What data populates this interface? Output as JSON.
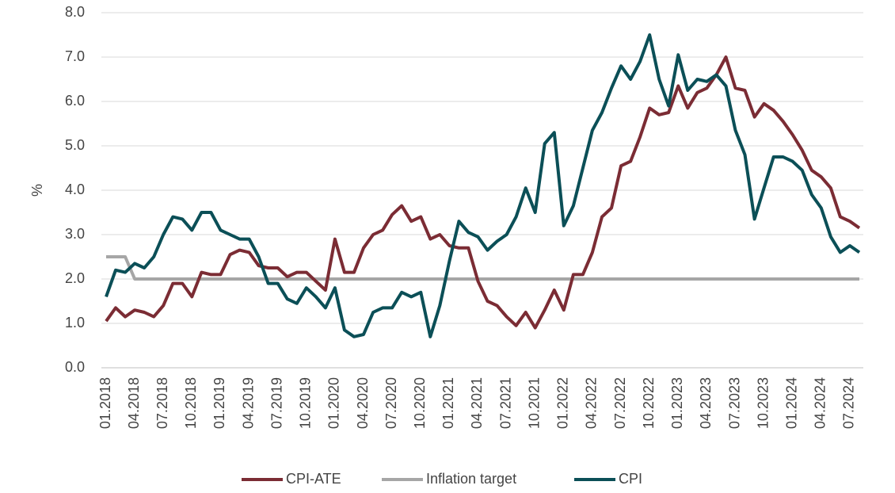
{
  "chart_data": {
    "type": "line",
    "ylabel": "%",
    "categories": [
      "01.2018",
      null,
      null,
      "04.2018",
      null,
      null,
      "07.2018",
      null,
      null,
      "10.2018",
      null,
      null,
      "01.2019",
      null,
      null,
      "04.2019",
      null,
      null,
      "07.2019",
      null,
      null,
      "10.2019",
      null,
      null,
      "01.2020",
      null,
      null,
      "04.2020",
      null,
      null,
      "07.2020",
      null,
      null,
      "10.2020",
      null,
      null,
      "01.2021",
      null,
      null,
      "04.2021",
      null,
      null,
      "07.2021",
      null,
      null,
      "10.2021",
      null,
      null,
      "01.2022",
      null,
      null,
      "04.2022",
      null,
      null,
      "07.2022",
      null,
      null,
      "10.2022",
      null,
      null,
      "01.2023",
      null,
      null,
      "04.2023",
      null,
      null,
      "07.2023",
      null,
      null,
      "10.2023",
      null,
      null,
      "01.2024",
      null,
      null,
      "04.2024",
      null,
      null,
      "07.2024",
      null
    ],
    "series": [
      {
        "name": "CPI-ATE",
        "color": "#7b2c34",
        "values": [
          1.05,
          1.35,
          1.15,
          1.3,
          1.25,
          1.15,
          1.4,
          1.9,
          1.9,
          1.6,
          2.15,
          2.1,
          2.1,
          2.55,
          2.65,
          2.6,
          2.3,
          2.25,
          2.25,
          2.05,
          2.15,
          2.15,
          1.95,
          1.75,
          2.9,
          2.15,
          2.15,
          2.7,
          3.0,
          3.1,
          3.45,
          3.65,
          3.3,
          3.4,
          2.9,
          3.0,
          2.75,
          2.7,
          2.7,
          1.95,
          1.5,
          1.4,
          1.15,
          0.95,
          1.25,
          0.9,
          1.3,
          1.75,
          1.3,
          2.1,
          2.1,
          2.6,
          3.4,
          3.6,
          4.55,
          4.65,
          5.2,
          5.85,
          5.7,
          5.75,
          6.35,
          5.85,
          6.2,
          6.3,
          6.6,
          7.0,
          6.3,
          6.25,
          5.65,
          5.95,
          5.8,
          5.55,
          5.25,
          4.9,
          4.45,
          4.3,
          4.05,
          3.4,
          3.3,
          3.15
        ]
      },
      {
        "name": "Inflation target",
        "color": "#a6a6a6",
        "values": [
          2.5,
          2.5,
          2.5,
          2.0,
          2.0,
          2.0,
          2.0,
          2.0,
          2.0,
          2.0,
          2.0,
          2.0,
          2.0,
          2.0,
          2.0,
          2.0,
          2.0,
          2.0,
          2.0,
          2.0,
          2.0,
          2.0,
          2.0,
          2.0,
          2.0,
          2.0,
          2.0,
          2.0,
          2.0,
          2.0,
          2.0,
          2.0,
          2.0,
          2.0,
          2.0,
          2.0,
          2.0,
          2.0,
          2.0,
          2.0,
          2.0,
          2.0,
          2.0,
          2.0,
          2.0,
          2.0,
          2.0,
          2.0,
          2.0,
          2.0,
          2.0,
          2.0,
          2.0,
          2.0,
          2.0,
          2.0,
          2.0,
          2.0,
          2.0,
          2.0,
          2.0,
          2.0,
          2.0,
          2.0,
          2.0,
          2.0,
          2.0,
          2.0,
          2.0,
          2.0,
          2.0,
          2.0,
          2.0,
          2.0,
          2.0,
          2.0,
          2.0,
          2.0,
          2.0,
          2.0
        ]
      },
      {
        "name": "CPI",
        "color": "#0b4f57",
        "values": [
          1.6,
          2.2,
          2.15,
          2.35,
          2.25,
          2.5,
          3.0,
          3.4,
          3.35,
          3.1,
          3.5,
          3.5,
          3.1,
          3.0,
          2.9,
          2.9,
          2.5,
          1.9,
          1.9,
          1.55,
          1.45,
          1.8,
          1.6,
          1.35,
          1.8,
          0.85,
          0.7,
          0.75,
          1.25,
          1.35,
          1.35,
          1.7,
          1.6,
          1.7,
          0.7,
          1.4,
          2.4,
          3.3,
          3.05,
          2.95,
          2.65,
          2.85,
          3.0,
          3.4,
          4.05,
          3.5,
          5.05,
          5.3,
          3.2,
          3.65,
          4.5,
          5.35,
          5.75,
          6.3,
          6.8,
          6.5,
          6.9,
          7.5,
          6.5,
          5.9,
          7.05,
          6.25,
          6.5,
          6.45,
          6.6,
          6.35,
          5.35,
          4.8,
          3.35,
          4.05,
          4.75,
          4.75,
          4.65,
          4.45,
          3.9,
          3.6,
          2.95,
          2.6,
          2.75,
          2.6
        ]
      }
    ],
    "ylim": [
      0,
      8
    ],
    "yticks": [
      {
        "value": 0,
        "label": "0.0"
      },
      {
        "value": 1,
        "label": "1.0"
      },
      {
        "value": 2,
        "label": "2.0"
      },
      {
        "value": 3,
        "label": "3.0"
      },
      {
        "value": 4,
        "label": "4.0"
      },
      {
        "value": 5,
        "label": "5.0"
      },
      {
        "value": 6,
        "label": "6.0"
      },
      {
        "value": 7,
        "label": "7.0"
      },
      {
        "value": 8,
        "label": "8.0"
      }
    ],
    "grid": true,
    "legend": "bottom"
  }
}
